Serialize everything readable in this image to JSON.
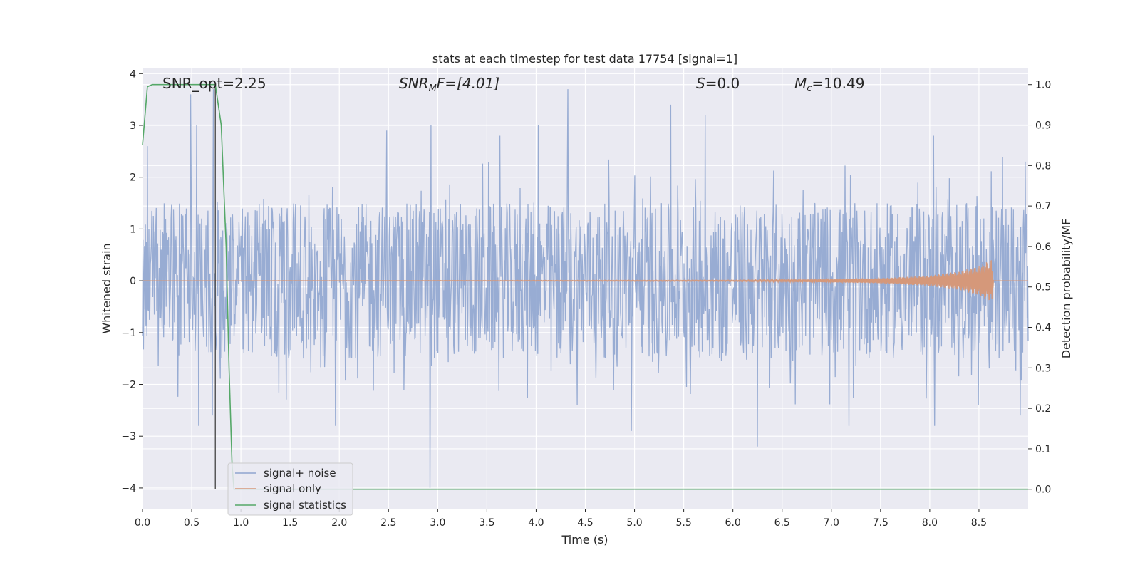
{
  "chart_data": {
    "type": "line",
    "title": "stats at each timestep for test data 17754 [signal=1]",
    "xlabel": "Time (s)",
    "ylabel": "Whitened strain",
    "y2label": "Detection probability/MF",
    "xlim": [
      0.0,
      9.0
    ],
    "ylim": [
      -4.4,
      4.1
    ],
    "y2lim": [
      -0.048,
      1.04
    ],
    "x_ticks": [
      0.0,
      0.5,
      1.0,
      1.5,
      2.0,
      2.5,
      3.0,
      3.5,
      4.0,
      4.5,
      5.0,
      5.5,
      6.0,
      6.5,
      7.0,
      7.5,
      8.0,
      8.5
    ],
    "x_tick_labels": [
      "0.0",
      "0.5",
      "1.0",
      "1.5",
      "2.0",
      "2.5",
      "3.0",
      "3.5",
      "4.0",
      "4.5",
      "5.0",
      "5.5",
      "6.0",
      "6.5",
      "7.0",
      "7.5",
      "8.0",
      "8.5"
    ],
    "y_ticks": [
      -4,
      -3,
      -2,
      -1,
      0,
      1,
      2,
      3,
      4
    ],
    "y_tick_labels": [
      "−4",
      "−3",
      "−2",
      "−1",
      "0",
      "1",
      "2",
      "3",
      "4"
    ],
    "y2_ticks": [
      0.0,
      0.1,
      0.2,
      0.3,
      0.4,
      0.5,
      0.6,
      0.7,
      0.8,
      0.9,
      1.0
    ],
    "y2_tick_labels": [
      "0.0",
      "0.1",
      "0.2",
      "0.3",
      "0.4",
      "0.5",
      "0.6",
      "0.7",
      "0.8",
      "0.9",
      "1.0"
    ],
    "grid": true,
    "legend_position": "bottom-left",
    "annotations": {
      "snr_opt": "SNR_opt=2.25",
      "snr_mf_var": "SNR",
      "snr_mf_sub": "M",
      "snr_mf_rest": "F=[4.01]",
      "s_var": "S",
      "s_rest": "=0.0",
      "mc_var": "M",
      "mc_sub": "c",
      "mc_rest": "=10.49"
    },
    "vertical_marker_x": 0.74,
    "series": [
      {
        "name": "signal+ noise",
        "color": "#8fa5cf",
        "axis": "left",
        "n_samples": 1800,
        "typical_amplitude": 1.5,
        "peaks": [
          {
            "x": 0.05,
            "y": 2.6
          },
          {
            "x": 0.49,
            "y": 3.6
          },
          {
            "x": 0.55,
            "y": 3.0
          },
          {
            "x": 0.72,
            "y": 3.7
          },
          {
            "x": 2.48,
            "y": 2.9
          },
          {
            "x": 2.93,
            "y": 3.0
          },
          {
            "x": 3.63,
            "y": 2.8
          },
          {
            "x": 4.02,
            "y": 3.0
          },
          {
            "x": 4.32,
            "y": 3.7
          },
          {
            "x": 5.37,
            "y": 3.4
          },
          {
            "x": 5.72,
            "y": 3.2
          },
          {
            "x": 8.04,
            "y": 2.8
          },
          {
            "x": 8.97,
            "y": 2.3
          }
        ],
        "troughs": [
          {
            "x": 0.57,
            "y": -2.8
          },
          {
            "x": 0.71,
            "y": -2.6
          },
          {
            "x": 1.96,
            "y": -2.8
          },
          {
            "x": 2.92,
            "y": -4.0
          },
          {
            "x": 4.97,
            "y": -2.9
          },
          {
            "x": 6.25,
            "y": -3.2
          },
          {
            "x": 7.18,
            "y": -2.8
          },
          {
            "x": 8.05,
            "y": -2.8
          },
          {
            "x": 8.92,
            "y": -2.6
          }
        ]
      },
      {
        "name": "signal only",
        "color": "#d5987a",
        "axis": "left",
        "points": [
          [
            0.0,
            0.0
          ],
          [
            6.0,
            0.01
          ],
          [
            7.0,
            0.03
          ],
          [
            7.5,
            0.05
          ],
          [
            8.0,
            0.1
          ],
          [
            8.3,
            0.18
          ],
          [
            8.5,
            0.28
          ],
          [
            8.63,
            0.42
          ],
          [
            8.65,
            0.0
          ],
          [
            9.0,
            0.0
          ]
        ]
      },
      {
        "name": "signal statistics",
        "color": "#55a868",
        "axis": "right",
        "points": [
          [
            0.0,
            0.85
          ],
          [
            0.05,
            0.995
          ],
          [
            0.1,
            1.0
          ],
          [
            0.3,
            1.0
          ],
          [
            0.5,
            1.0
          ],
          [
            0.72,
            1.0
          ],
          [
            0.74,
            1.0
          ],
          [
            0.8,
            0.9
          ],
          [
            0.85,
            0.6
          ],
          [
            0.88,
            0.3
          ],
          [
            0.91,
            0.06
          ],
          [
            0.93,
            0.0
          ],
          [
            2.0,
            0.0
          ],
          [
            5.0,
            0.0
          ],
          [
            9.0,
            0.0
          ]
        ]
      }
    ]
  }
}
